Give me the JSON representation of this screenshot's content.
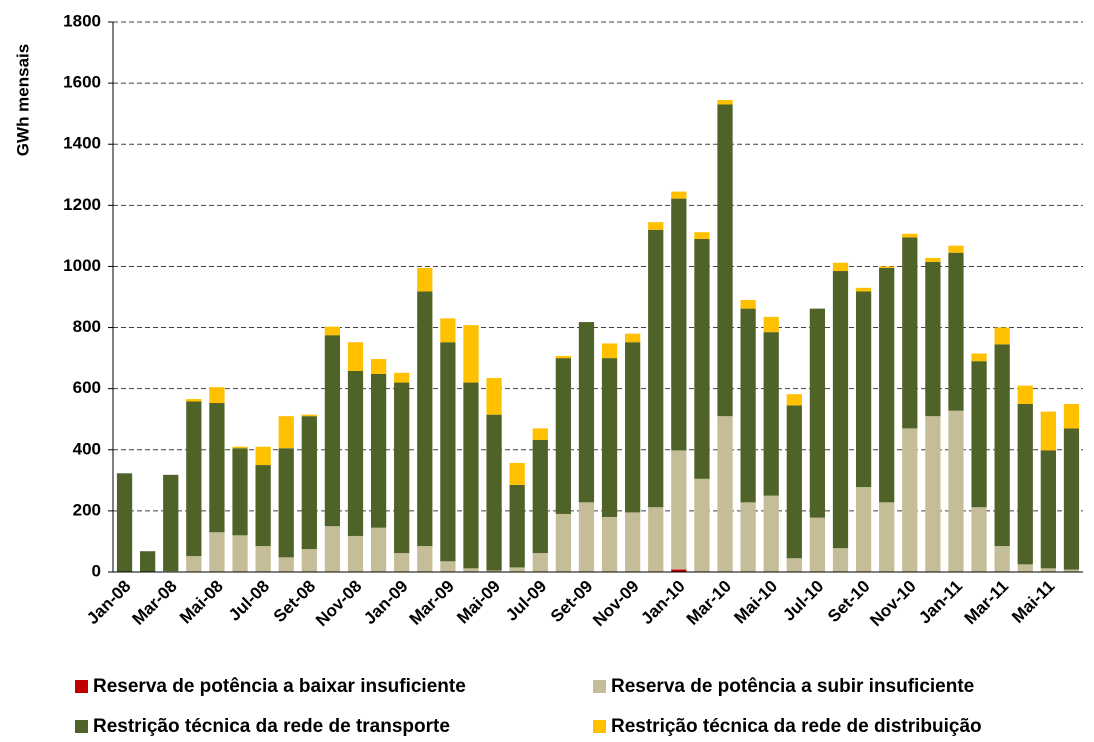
{
  "chart_data": {
    "type": "stacked_bar",
    "y_label": "GWh mensais",
    "categories": [
      "Jan-08",
      null,
      "Mar-08",
      null,
      "Mai-08",
      null,
      "Jul-08",
      null,
      "Set-08",
      null,
      "Nov-08",
      null,
      "Jan-09",
      null,
      "Mar-09",
      null,
      "Mai-09",
      null,
      "Jul-09",
      null,
      "Set-09",
      null,
      "Nov-09",
      null,
      "Jan-10",
      null,
      "Mar-10",
      null,
      "Mai-10",
      null,
      "Jul-10",
      null,
      "Set-10",
      null,
      "Nov-10",
      null,
      "Jan-11",
      null,
      "Mar-11",
      null,
      "Mai-11",
      null
    ],
    "series": [
      {
        "name": "Reserva de potência a baixar insuficiente",
        "color": "#c00000",
        "values": [
          0,
          0,
          0,
          0,
          0,
          0,
          0,
          0,
          0,
          0,
          0,
          0,
          0,
          0,
          0,
          0,
          0,
          0,
          0,
          0,
          0,
          0,
          0,
          0,
          8,
          0,
          0,
          0,
          0,
          0,
          0,
          0,
          0,
          0,
          0,
          0,
          0,
          0,
          0,
          0,
          0,
          0
        ]
      },
      {
        "name": "Reserva de potência a subir insuficiente",
        "color": "#c4bd97",
        "values": [
          0,
          0,
          3,
          52,
          130,
          120,
          85,
          48,
          75,
          150,
          118,
          145,
          62,
          85,
          35,
          12,
          5,
          15,
          62,
          190,
          228,
          180,
          195,
          212,
          390,
          305,
          510,
          228,
          250,
          45,
          178,
          78,
          278,
          228,
          470,
          510,
          528,
          212,
          85,
          25,
          12,
          8
        ]
      },
      {
        "name": "Restrição técnica da rede de transporte",
        "color": "#4f6228",
        "values": [
          323,
          68,
          315,
          506,
          423,
          285,
          265,
          357,
          435,
          625,
          540,
          503,
          558,
          833,
          717,
          608,
          510,
          270,
          370,
          510,
          590,
          520,
          557,
          908,
          824,
          785,
          1020,
          634,
          535,
          500,
          684,
          907,
          640,
          767,
          625,
          505,
          517,
          478,
          660,
          525,
          386,
          462
        ]
      },
      {
        "name": "Restrição técnica da rede de distribuição",
        "color": "#ffc000",
        "values": [
          0,
          0,
          0,
          8,
          52,
          5,
          60,
          105,
          5,
          28,
          94,
          49,
          32,
          77,
          78,
          188,
          120,
          72,
          38,
          7,
          0,
          48,
          28,
          25,
          23,
          22,
          15,
          28,
          50,
          37,
          0,
          27,
          12,
          5,
          12,
          13,
          23,
          25,
          55,
          60,
          127,
          80
        ]
      }
    ],
    "ylim": [
      0,
      1800
    ],
    "yticks": [
      0,
      200,
      400,
      600,
      800,
      1000,
      1200,
      1400,
      1600,
      1800
    ],
    "grid": true
  }
}
